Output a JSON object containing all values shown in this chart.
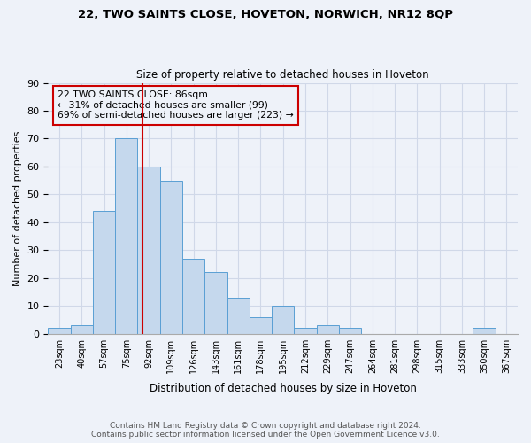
{
  "title1": "22, TWO SAINTS CLOSE, HOVETON, NORWICH, NR12 8QP",
  "title2": "Size of property relative to detached houses in Hoveton",
  "xlabel": "Distribution of detached houses by size in Hoveton",
  "ylabel": "Number of detached properties",
  "bin_labels": [
    "23sqm",
    "40sqm",
    "57sqm",
    "75sqm",
    "92sqm",
    "109sqm",
    "126sqm",
    "143sqm",
    "161sqm",
    "178sqm",
    "195sqm",
    "212sqm",
    "229sqm",
    "247sqm",
    "264sqm",
    "281sqm",
    "298sqm",
    "315sqm",
    "333sqm",
    "350sqm",
    "367sqm"
  ],
  "bar_values": [
    2,
    3,
    44,
    70,
    60,
    55,
    27,
    22,
    13,
    6,
    10,
    2,
    3,
    2,
    0,
    0,
    0,
    0,
    0,
    2,
    0
  ],
  "bar_color": "#c5d8ed",
  "bar_edgecolor": "#5a9fd4",
  "property_value_bin": 3.7,
  "annotation_title": "22 TWO SAINTS CLOSE: 86sqm",
  "annotation_line1": "← 31% of detached houses are smaller (99)",
  "annotation_line2": "69% of semi-detached houses are larger (223) →",
  "vline_color": "#cc0000",
  "annotation_box_edgecolor": "#cc0000",
  "ylim": [
    0,
    90
  ],
  "yticks": [
    0,
    10,
    20,
    30,
    40,
    50,
    60,
    70,
    80,
    90
  ],
  "footer1": "Contains HM Land Registry data © Crown copyright and database right 2024.",
  "footer2": "Contains public sector information licensed under the Open Government Licence v3.0.",
  "bg_color": "#eef2f9",
  "grid_color": "#d0d8e8"
}
